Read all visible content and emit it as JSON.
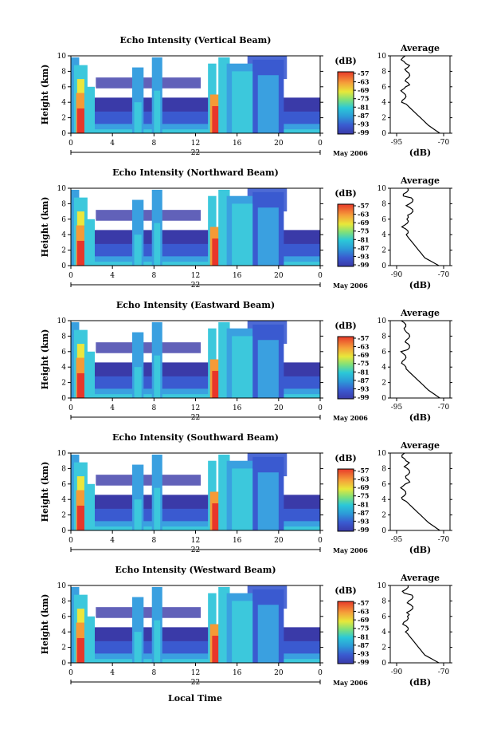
{
  "figure": {
    "month_label": "May 2006",
    "x_axis_label": "Local Time",
    "cbar_unit": "(dB)",
    "avg_title": "Average",
    "avg_xlabel": "(dB)"
  },
  "chart_data": [
    {
      "type": "heatmap",
      "title": "Echo Intensity (Vertical Beam)",
      "ylabel": "Height (km)",
      "xlim": [
        0,
        24
      ],
      "ylim": [
        0,
        10
      ],
      "x_ticks": [
        "0",
        "4",
        "8",
        "12",
        "16",
        "20",
        "0"
      ],
      "y_ticks": [
        "0",
        "2",
        "4",
        "6",
        "8",
        "10"
      ],
      "day_label": "22",
      "colorbar": {
        "ticks": [
          "-57",
          "-63",
          "-69",
          "-75",
          "-81",
          "-87",
          "-93",
          "-99"
        ]
      },
      "average": {
        "xlim": [
          -95,
          -70
        ],
        "x_ticks": [
          "-95",
          "-70"
        ],
        "y_ticks": [
          "0",
          "2",
          "4",
          "6",
          "8",
          "10"
        ]
      }
    },
    {
      "type": "heatmap",
      "title": "Echo Intensity (Northward Beam)",
      "ylabel": "Height (km)",
      "xlim": [
        0,
        24
      ],
      "ylim": [
        0,
        10
      ],
      "x_ticks": [
        "0",
        "4",
        "8",
        "12",
        "16",
        "20",
        "0"
      ],
      "y_ticks": [
        "0",
        "2",
        "4",
        "6",
        "8",
        "10"
      ],
      "day_label": "22",
      "colorbar": {
        "ticks": [
          "-57",
          "-63",
          "-69",
          "-75",
          "-81",
          "-87",
          "-93",
          "-99"
        ]
      },
      "average": {
        "xlim": [
          -90,
          -70
        ],
        "x_ticks": [
          "-90",
          "-70"
        ],
        "y_ticks": [
          "0",
          "2",
          "4",
          "6",
          "8",
          "10"
        ]
      }
    },
    {
      "type": "heatmap",
      "title": "Echo Intensity (Eastward Beam)",
      "ylabel": "Height (km)",
      "xlim": [
        0,
        24
      ],
      "ylim": [
        0,
        10
      ],
      "x_ticks": [
        "0",
        "4",
        "8",
        "12",
        "16",
        "20",
        "0"
      ],
      "y_ticks": [
        "0",
        "2",
        "4",
        "6",
        "8",
        "10"
      ],
      "day_label": "22",
      "colorbar": {
        "ticks": [
          "-57",
          "-63",
          "-69",
          "-75",
          "-81",
          "-87",
          "-93",
          "-99"
        ]
      },
      "average": {
        "xlim": [
          -95,
          -70
        ],
        "x_ticks": [
          "-95",
          "-70"
        ],
        "y_ticks": [
          "0",
          "2",
          "4",
          "6",
          "8",
          "10"
        ]
      }
    },
    {
      "type": "heatmap",
      "title": "Echo Intensity (Southward Beam)",
      "ylabel": "Height (km)",
      "xlim": [
        0,
        24
      ],
      "ylim": [
        0,
        10
      ],
      "x_ticks": [
        "0",
        "4",
        "8",
        "12",
        "16",
        "20",
        "0"
      ],
      "y_ticks": [
        "0",
        "2",
        "4",
        "6",
        "8",
        "10"
      ],
      "day_label": "22",
      "colorbar": {
        "ticks": [
          "-57",
          "-63",
          "-69",
          "-75",
          "-81",
          "-87",
          "-93",
          "-99"
        ]
      },
      "average": {
        "xlim": [
          -95,
          -70
        ],
        "x_ticks": [
          "-95",
          "-70"
        ],
        "y_ticks": [
          "0",
          "2",
          "4",
          "6",
          "8",
          "10"
        ]
      }
    },
    {
      "type": "heatmap",
      "title": "Echo Intensity (Westward Beam)",
      "ylabel": "Height (km)",
      "xlim": [
        0,
        24
      ],
      "ylim": [
        0,
        10
      ],
      "x_ticks": [
        "0",
        "4",
        "8",
        "12",
        "16",
        "20",
        "0"
      ],
      "y_ticks": [
        "0",
        "2",
        "4",
        "6",
        "8",
        "10"
      ],
      "day_label": "22",
      "colorbar": {
        "ticks": [
          "-57",
          "-63",
          "-69",
          "-75",
          "-81",
          "-87",
          "-93",
          "-99"
        ]
      },
      "average": {
        "xlim": [
          -90,
          -70
        ],
        "x_ticks": [
          "-90",
          "-70"
        ],
        "y_ticks": [
          "0",
          "2",
          "4",
          "6",
          "8",
          "10"
        ]
      }
    }
  ]
}
